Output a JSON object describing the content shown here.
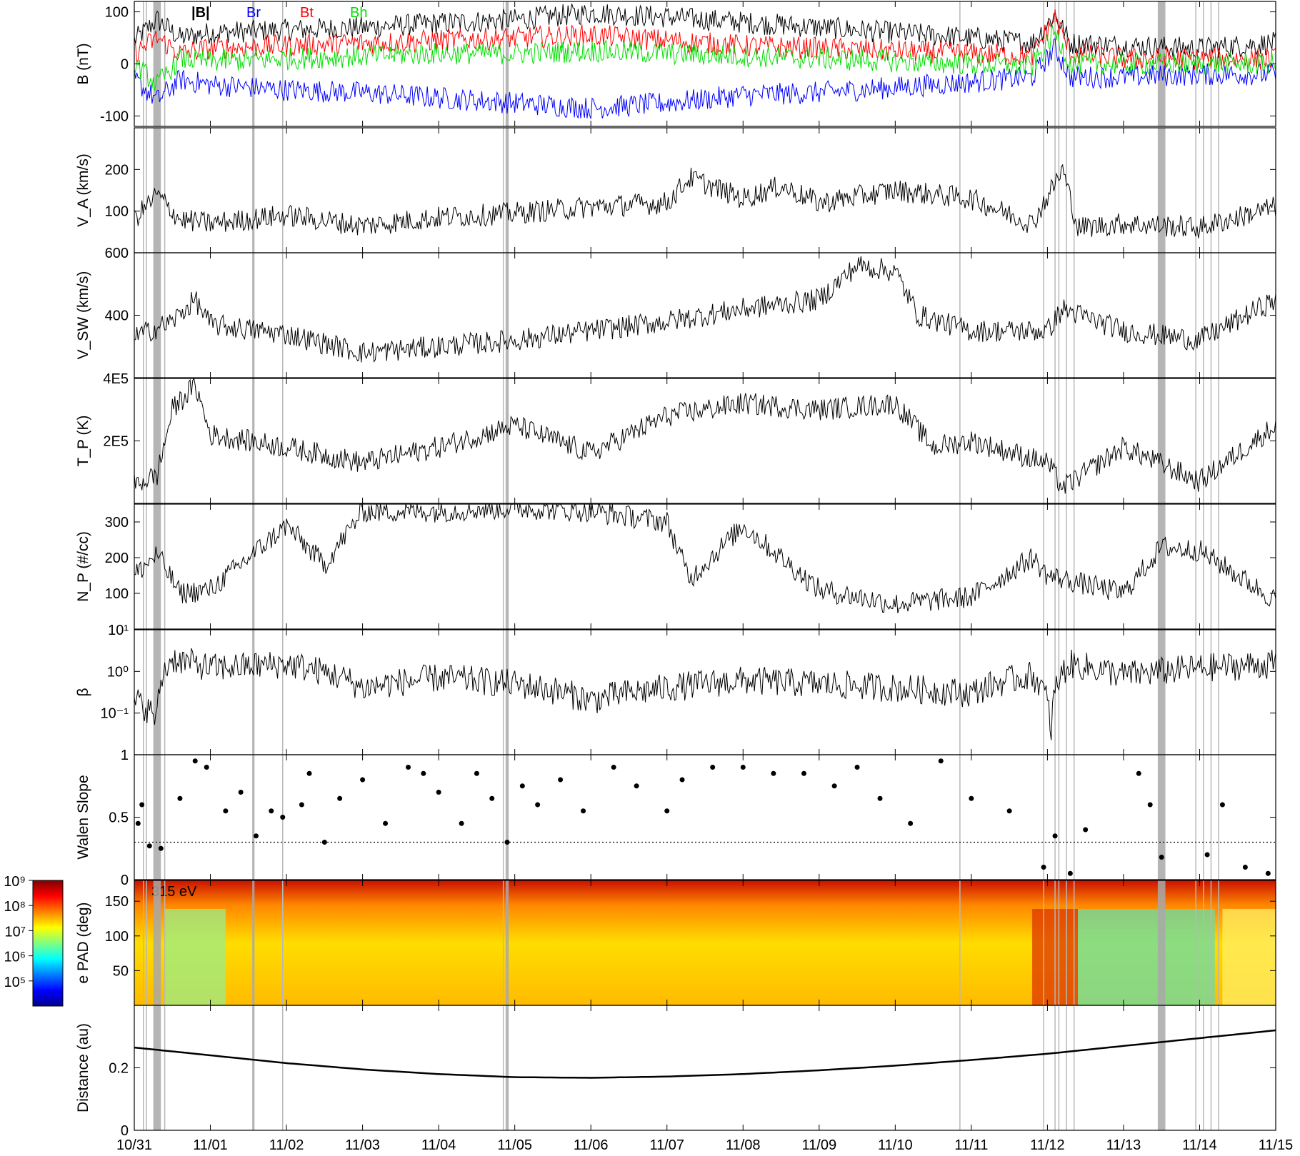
{
  "chart_data": {
    "type": "line",
    "x_ticks": [
      "10/31",
      "11/01",
      "11/02",
      "11/03",
      "11/04",
      "11/05",
      "11/06",
      "11/07",
      "11/08",
      "11/09",
      "11/10",
      "11/11",
      "11/12",
      "11/13",
      "11/14",
      "11/15"
    ],
    "shaded_intervals_days": [
      [
        0.25,
        0.35
      ],
      [
        1.55,
        1.58
      ],
      [
        4.88,
        4.92
      ],
      [
        13.45,
        13.55
      ]
    ],
    "vertical_lines_days": [
      0.12,
      0.16,
      0.4,
      1.95,
      4.85,
      10.85,
      11.95,
      12.1,
      12.15,
      12.25,
      12.35,
      13.95,
      14.05,
      14.15,
      14.25
    ],
    "panels": [
      {
        "id": "B",
        "ylabel": "B (nT)",
        "ylim": [
          -120,
          120
        ],
        "yticks": [
          -100,
          0,
          100
        ],
        "ytick_labels": [
          "-100",
          "0",
          "100"
        ],
        "legend": [
          {
            "name": "|B|",
            "color": "#000000"
          },
          {
            "name": "Br",
            "color": "#0000ff"
          },
          {
            "name": "Bt",
            "color": "#ff0000"
          },
          {
            "name": "Bh",
            "color": "#00dd00"
          }
        ],
        "series": [
          {
            "name": "|B|",
            "color": "#000000",
            "x": [
              0,
              0.3,
              0.6,
              1,
              2,
              3,
              4,
              5,
              6,
              7,
              8,
              9,
              10,
              11,
              11.8,
              12.1,
              12.3,
              13,
              14,
              15
            ],
            "y": [
              45,
              85,
              50,
              60,
              65,
              70,
              78,
              85,
              98,
              90,
              80,
              70,
              60,
              50,
              40,
              95,
              40,
              35,
              30,
              40
            ]
          },
          {
            "name": "Br",
            "color": "#0000ff",
            "x": [
              0,
              0.3,
              0.6,
              1,
              2,
              3,
              4,
              5,
              6,
              7,
              8,
              9,
              10,
              11,
              11.8,
              12.1,
              12.3,
              13,
              14,
              15
            ],
            "y": [
              -30,
              -70,
              -30,
              -40,
              -50,
              -55,
              -65,
              -75,
              -85,
              -75,
              -60,
              -55,
              -45,
              -35,
              -25,
              30,
              -25,
              -25,
              -20,
              -20
            ]
          },
          {
            "name": "Bt",
            "color": "#ff0000",
            "x": [
              0,
              0.3,
              0.6,
              1,
              2,
              3,
              4,
              5,
              6,
              7,
              8,
              9,
              10,
              11,
              11.8,
              12.1,
              12.3,
              13,
              14,
              15
            ],
            "y": [
              20,
              50,
              20,
              30,
              35,
              40,
              45,
              50,
              55,
              45,
              35,
              30,
              25,
              20,
              15,
              90,
              20,
              10,
              10,
              10
            ]
          },
          {
            "name": "Bh",
            "color": "#00dd00",
            "x": [
              0,
              0.3,
              0.6,
              1,
              2,
              3,
              4,
              5,
              6,
              7,
              8,
              9,
              10,
              11,
              11.8,
              12.1,
              12.3,
              13,
              14,
              15
            ],
            "y": [
              0,
              -40,
              10,
              5,
              10,
              15,
              20,
              20,
              25,
              20,
              15,
              10,
              5,
              0,
              -5,
              60,
              0,
              0,
              0,
              0
            ]
          }
        ]
      },
      {
        "id": "VA",
        "ylabel": "V_A (km/s)",
        "ylim": [
          0,
          300
        ],
        "yticks": [
          100,
          200
        ],
        "ytick_labels": [
          "100",
          "200"
        ],
        "series": [
          {
            "name": "",
            "color": "#000000",
            "x": [
              0,
              0.3,
              0.6,
              1,
              2,
              3,
              4,
              5,
              6,
              7,
              7.3,
              8,
              8.5,
              9,
              10,
              11,
              11.8,
              12.2,
              12.4,
              13,
              14,
              15
            ],
            "y": [
              80,
              140,
              80,
              70,
              90,
              65,
              85,
              95,
              110,
              120,
              180,
              130,
              160,
              120,
              150,
              130,
              70,
              200,
              60,
              70,
              60,
              110
            ]
          }
        ]
      },
      {
        "id": "VSW",
        "ylabel": "V_SW (km/s)",
        "ylim": [
          200,
          600
        ],
        "yticks": [
          400,
          600
        ],
        "ytick_labels": [
          "400",
          "600"
        ],
        "series": [
          {
            "name": "",
            "color": "#000000",
            "x": [
              0,
              0.5,
              0.8,
              1,
              2,
              3,
              4,
              5,
              6,
              7,
              8,
              9,
              9.5,
              10,
              10.3,
              11,
              12,
              12.2,
              13,
              14,
              15
            ],
            "y": [
              330,
              380,
              450,
              370,
              340,
              280,
              300,
              320,
              350,
              380,
              420,
              450,
              560,
              540,
              400,
              350,
              350,
              420,
              350,
              320,
              450
            ]
          }
        ]
      },
      {
        "id": "TP",
        "ylabel": "T_P (K)",
        "ylim": [
          0,
          400000
        ],
        "yticks": [
          200000,
          400000
        ],
        "ytick_labels": [
          "2E5",
          "4E5"
        ],
        "series": [
          {
            "name": "",
            "color": "#000000",
            "x": [
              0,
              0.3,
              0.5,
              0.8,
              1,
              2,
              3,
              4,
              5,
              6,
              7,
              8,
              9,
              10,
              10.5,
              11,
              12,
              12.2,
              13,
              14,
              15
            ],
            "y": [
              60000,
              90000,
              300000,
              380000,
              220000,
              180000,
              130000,
              180000,
              250000,
              160000,
              280000,
              320000,
              300000,
              320000,
              180000,
              200000,
              130000,
              50000,
              180000,
              70000,
              250000
            ]
          }
        ]
      },
      {
        "id": "NP",
        "ylabel": "N_P (#/cc)",
        "ylim": [
          0,
          350
        ],
        "yticks": [
          100,
          200,
          300
        ],
        "ytick_labels": [
          "100",
          "200",
          "300"
        ],
        "series": [
          {
            "name": "",
            "color": "#000000",
            "x": [
              0,
              0.3,
              0.6,
              1,
              1.5,
              2,
              2.5,
              3,
              4,
              5,
              6,
              7,
              7.3,
              8,
              9,
              10,
              11,
              11.8,
              12,
              13,
              13.5,
              14,
              15
            ],
            "y": [
              150,
              210,
              100,
              110,
              200,
              290,
              180,
              330,
              330,
              340,
              330,
              300,
              140,
              290,
              110,
              70,
              90,
              200,
              150,
              100,
              230,
              220,
              80
            ]
          }
        ]
      },
      {
        "id": "beta",
        "ylabel": "β",
        "yscale": "log",
        "ylim": [
          0.01,
          10
        ],
        "yticks": [
          0.1,
          1,
          10
        ],
        "ytick_labels": [
          "10⁻¹",
          "10⁰",
          "10¹"
        ],
        "series": [
          {
            "name": "",
            "color": "#000000",
            "x": [
              0,
              0.3,
              0.5,
              1,
              2,
              3,
              4,
              5,
              6,
              7,
              8,
              9,
              10,
              11,
              11.8,
              12.05,
              12.3,
              13,
              14,
              15
            ],
            "y": [
              0.2,
              0.07,
              2,
              1.2,
              1.5,
              0.4,
              0.7,
              0.5,
              0.2,
              0.4,
              0.6,
              0.5,
              0.4,
              0.3,
              0.8,
              0.02,
              1.5,
              0.8,
              1.2,
              1.5
            ]
          }
        ]
      },
      {
        "id": "walen",
        "ylabel": "Walen Slope",
        "ylim": [
          0,
          1
        ],
        "yticks": [
          0,
          0.5,
          1
        ],
        "ytick_labels": [
          "0",
          "0.5",
          "1"
        ],
        "reference_line": 0.3,
        "scatter": [
          [
            0.05,
            0.45
          ],
          [
            0.1,
            0.6
          ],
          [
            0.2,
            0.27
          ],
          [
            0.35,
            0.25
          ],
          [
            0.6,
            0.65
          ],
          [
            0.8,
            0.95
          ],
          [
            0.95,
            0.9
          ],
          [
            1.2,
            0.55
          ],
          [
            1.4,
            0.7
          ],
          [
            1.6,
            0.35
          ],
          [
            1.8,
            0.55
          ],
          [
            1.95,
            0.5
          ],
          [
            2.2,
            0.6
          ],
          [
            2.3,
            0.85
          ],
          [
            2.5,
            0.3
          ],
          [
            2.7,
            0.65
          ],
          [
            3.0,
            0.8
          ],
          [
            3.3,
            0.45
          ],
          [
            3.6,
            0.9
          ],
          [
            3.8,
            0.85
          ],
          [
            4.0,
            0.7
          ],
          [
            4.3,
            0.45
          ],
          [
            4.5,
            0.85
          ],
          [
            4.7,
            0.65
          ],
          [
            4.9,
            0.3
          ],
          [
            5.1,
            0.75
          ],
          [
            5.3,
            0.6
          ],
          [
            5.6,
            0.8
          ],
          [
            5.9,
            0.55
          ],
          [
            6.3,
            0.9
          ],
          [
            6.6,
            0.75
          ],
          [
            7.0,
            0.55
          ],
          [
            7.2,
            0.8
          ],
          [
            7.6,
            0.9
          ],
          [
            8.0,
            0.9
          ],
          [
            8.4,
            0.85
          ],
          [
            8.8,
            0.85
          ],
          [
            9.2,
            0.75
          ],
          [
            9.5,
            0.9
          ],
          [
            9.8,
            0.65
          ],
          [
            10.2,
            0.45
          ],
          [
            10.6,
            0.95
          ],
          [
            11.0,
            0.65
          ],
          [
            11.5,
            0.55
          ],
          [
            11.95,
            0.1
          ],
          [
            12.1,
            0.35
          ],
          [
            12.3,
            0.05
          ],
          [
            12.5,
            0.4
          ],
          [
            13.2,
            0.85
          ],
          [
            13.35,
            0.6
          ],
          [
            13.5,
            0.18
          ],
          [
            14.1,
            0.2
          ],
          [
            14.3,
            0.6
          ],
          [
            14.6,
            0.1
          ],
          [
            14.9,
            0.05
          ]
        ]
      },
      {
        "id": "epad",
        "ylabel": "e PAD (deg)",
        "ylim": [
          0,
          180
        ],
        "yticks": [
          50,
          100,
          150
        ],
        "ytick_labels": [
          "50",
          "100",
          "150"
        ],
        "annotation": "315 eV",
        "colorbar": {
          "scale": "log",
          "range": [
            10000,
            1000000000
          ],
          "tick_labels": [
            "10⁵",
            "10⁶",
            "10⁷",
            "10⁸",
            "10⁹"
          ]
        }
      },
      {
        "id": "distance",
        "ylabel": "Distance (au)",
        "ylim": [
          0,
          0.4
        ],
        "yticks": [
          0,
          0.2
        ],
        "ytick_labels": [
          "0",
          "0.2"
        ],
        "series": [
          {
            "name": "",
            "color": "#000000",
            "x": [
              0,
              1,
              2,
              3,
              4,
              5,
              6,
              7,
              8,
              9,
              10,
              11,
              12,
              13,
              14,
              15
            ],
            "y": [
              0.265,
              0.24,
              0.215,
              0.195,
              0.18,
              0.17,
              0.168,
              0.172,
              0.18,
              0.192,
              0.207,
              0.225,
              0.245,
              0.27,
              0.295,
              0.32
            ]
          }
        ]
      }
    ]
  }
}
